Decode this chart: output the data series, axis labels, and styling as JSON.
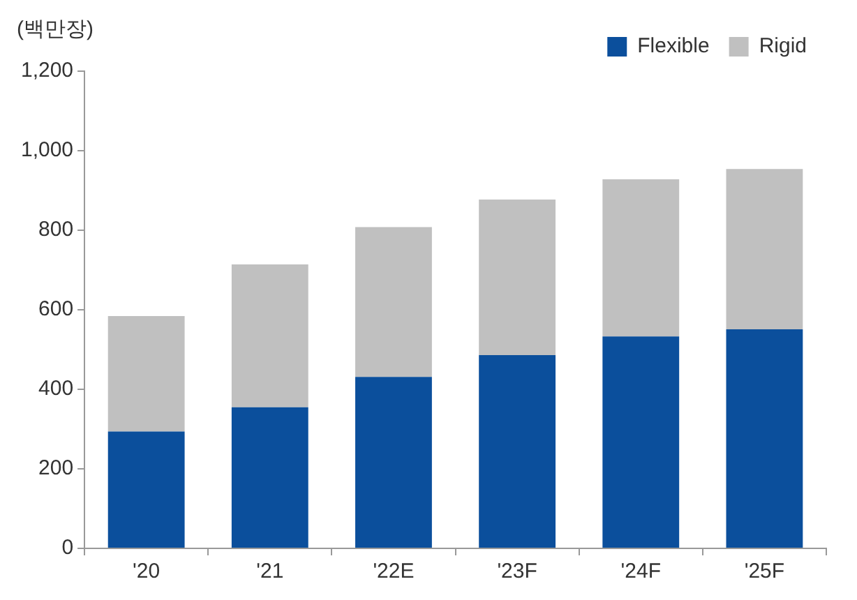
{
  "chart_data": {
    "type": "bar",
    "ylabel": "(백만장)",
    "categories": [
      "'20",
      "'21",
      "'22E",
      "'23F",
      "'24F",
      "'25F"
    ],
    "stacked": true,
    "series": [
      {
        "name": "Flexible",
        "color": "#0b4f9c",
        "values": [
          294,
          355,
          431,
          486,
          533,
          551
        ]
      },
      {
        "name": "Rigid",
        "color": "#c0c0c0",
        "values": [
          290,
          359,
          377,
          391,
          395,
          403
        ]
      }
    ],
    "ylim": [
      0,
      1200
    ],
    "yticks": [
      0,
      {
        "value": 200,
        "label": "200"
      },
      {
        "value": 400,
        "label": "400"
      },
      {
        "value": 600,
        "label": "600"
      },
      {
        "value": 800,
        "label": "800"
      },
      {
        "value": 1000,
        "label": "1,000"
      },
      {
        "value": 1200,
        "label": "1,200"
      }
    ],
    "legend": "top right"
  }
}
